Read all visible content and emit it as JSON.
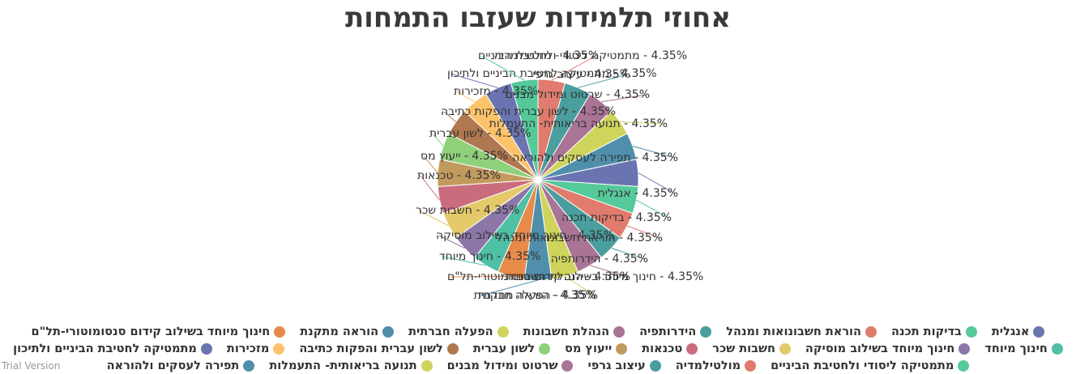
{
  "watermark": "Trial Version",
  "chart_data": {
    "type": "pie",
    "title": "אחוזי תלמידות שעזבו התמחות",
    "legend_position": "bottom",
    "slices": [
      {
        "name": "מולטילמדיה",
        "value": 4.35,
        "label": "4.35% - מולטילמדיה",
        "color": "#e07b6e"
      },
      {
        "name": "עיצוב גרפי",
        "value": 4.35,
        "label": "4.35% - עיצוב גרפי",
        "color": "#4a9e9e"
      },
      {
        "name": "שרטוט ומידול מבנים",
        "value": 4.35,
        "label": "4.35% - שרטוט ומידול מבנים",
        "color": "#a97496"
      },
      {
        "name": "תנועה בריאותית- התעמלות",
        "value": 4.35,
        "label": "4.35% - תנועה בריאותית- התעמלות",
        "color": "#cfd45c"
      },
      {
        "name": "תפירה לעסקים ולהוראה",
        "value": 4.35,
        "label": "4.35% - תפירה לעסקים ולהוראה",
        "color": "#4f8fab"
      },
      {
        "name": "אנגלית",
        "value": 4.35,
        "label": "4.35% - אנגלית",
        "color": "#6a74b0"
      },
      {
        "name": "בדיקות תכנה",
        "value": 4.35,
        "label": "4.35% - בדיקות תכנה ",
        "color": "#55c99a"
      },
      {
        "name": "הוראת חשבונואות ומנהל",
        "value": 4.35,
        "label": "4.35% - הוראת חשבונואות ומנהל",
        "color": "#e07b6e"
      },
      {
        "name": "הידרותפיה",
        "value": 4.35,
        "label": "4.35% - הידרותפיה",
        "color": "#4a9e9e"
      },
      {
        "name": "הנהלת חשבונות",
        "value": 4.35,
        "label": "4.35% - הנהלת חשבונות",
        "color": "#a97496"
      },
      {
        "name": "הפעלה חברתית",
        "value": 4.35,
        "label": "4.35% - הפעלה חברתית",
        "color": "#cfd45c"
      },
      {
        "name": "הוראה מתקנת",
        "value": 4.35,
        "label": "4.35% - הוראה מתקנת",
        "color": "#4f8fab"
      },
      {
        "name": "חינוך מיוחד בשילוב קידום סנסומוטורי-תל\"ם",
        "value": 4.35,
        "label": "4.35% - חינוך מיוחד בשילוב קידום סנסומוטורי-תל\"ם",
        "color": "#e88a4a"
      },
      {
        "name": "חינוך מיוחד",
        "value": 4.35,
        "label": "4.35% - חינוך מיוחד",
        "color": "#4fbfa5"
      },
      {
        "name": "חינוך מיוחד בשילוב מוסיקה",
        "value": 4.35,
        "label": "4.35% - חינוך מיוחד בשילוב מוסיקה",
        "color": "#8c76a8"
      },
      {
        "name": "חשבות שכר",
        "value": 4.35,
        "label": "4.35% - חשבות שכר",
        "color": "#e3c96a"
      },
      {
        "name": "טכנאות",
        "value": 4.35,
        "label": "4.35% - טכנאות",
        "color": "#c96d7e"
      },
      {
        "name": "ייעוץ מס",
        "value": 4.35,
        "label": "4.35% - ייעוץ מס",
        "color": "#c39a5e"
      },
      {
        "name": "לשון עברית",
        "value": 4.35,
        "label": "4.35% - לשון עברית",
        "color": "#8fd07a"
      },
      {
        "name": "לשון עברית והפקות כתיבה",
        "value": 4.35,
        "label": "4.35% - לשון עברית והפקות כתיבה",
        "color": "#b07850"
      },
      {
        "name": "מזכירות",
        "value": 4.35,
        "label": "4.35% - מזכירות",
        "color": "#fcc36a"
      },
      {
        "name": "מתמטיקה לחטיבת הביניים ולתיכון",
        "value": 4.35,
        "label": "4.35% - מתמטיקה לחטיבת הביניים ולתיכון",
        "color": "#6a74b0"
      },
      {
        "name": "מתמטיקה ליסודי ולחטיבת הביניים",
        "value": 4.35,
        "label": "4.35% - מתמטיקה ליסודי ולחטיבת הביניים",
        "color": "#55c99a"
      }
    ],
    "legend_rows": [
      [
        "אנגלית",
        "בדיקות תכנה",
        "הוראת חשבונואות ומנהל",
        "הידרותפיה",
        "הנהלת חשבונות",
        "הפעלה חברתית",
        "הוראה מתקנת",
        "חינוך מיוחד בשילוב קידום סנסומוטורי-תל\"ם"
      ],
      [
        "חינוך מיוחד",
        "חינוך מיוחד בשילוב מוסיקה",
        "חשבות שכר",
        "טכנאות",
        "ייעוץ מס",
        "לשון עברית",
        "לשון עברית והפקות כתיבה",
        "מזכירות",
        "מתמטיקה לחטיבת הביניים ולתיכון"
      ],
      [
        "מתמטיקה ליסודי ולחטיבת הביניים",
        "מולטילמדיה",
        "עיצוב גרפי",
        "שרטוט ומידול מבנים",
        "תנועה בריאותית- התעמלות",
        "תפירה לעסקים ולהוראה"
      ]
    ]
  }
}
